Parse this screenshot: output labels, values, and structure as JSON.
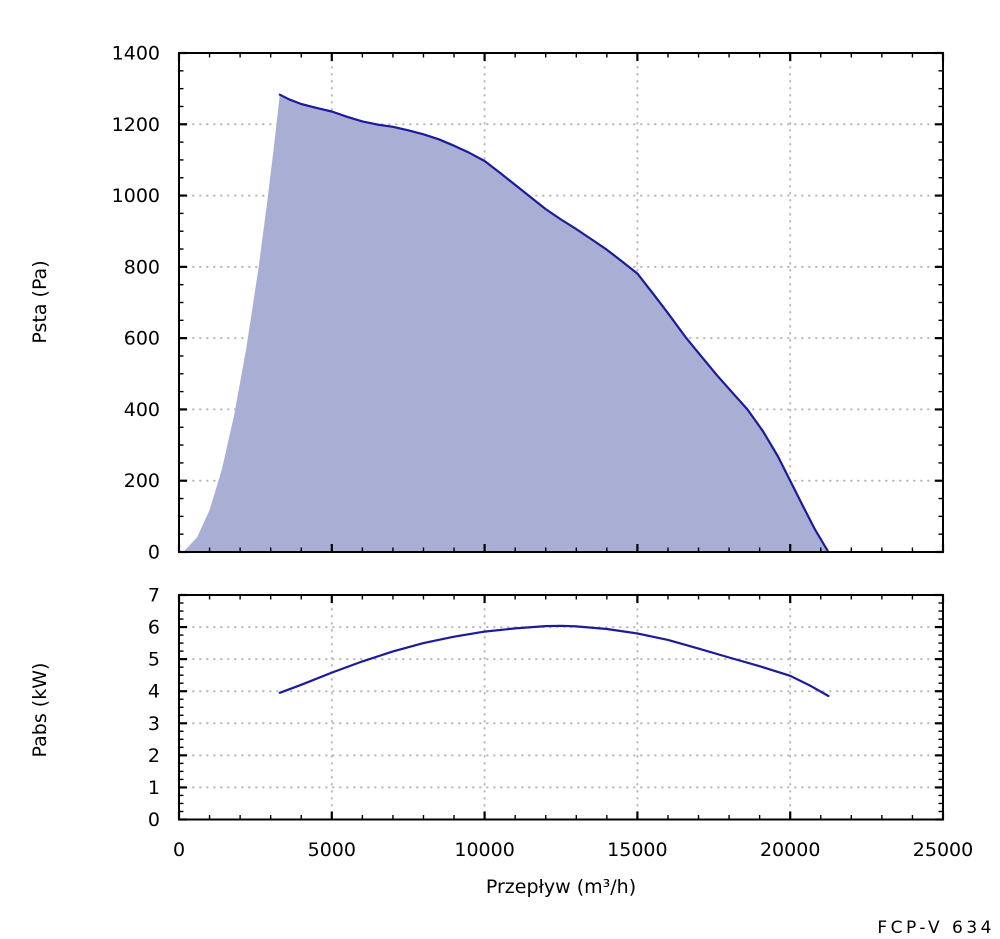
{
  "footer": {
    "model": "FCP-V 634"
  },
  "colors": {
    "curve_line": "#1b1b9c",
    "area_fill": "#a9afd4",
    "grid": "#b9b9b9",
    "axis": "#000000",
    "background": "#ffffff"
  },
  "x_axis": {
    "label": "Przepływ (m³/h)",
    "min": 0,
    "max": 25000,
    "major_ticks": [
      0,
      5000,
      10000,
      15000,
      20000,
      25000
    ],
    "minor_step": 1000
  },
  "chart_data": [
    {
      "type": "area",
      "name": "psta",
      "title": "",
      "ylabel": "Psta (Pa)",
      "xlabel": "Przepływ (m³/h)",
      "xlim": [
        0,
        25000
      ],
      "ylim": [
        0,
        1400
      ],
      "y_major_ticks": [
        0,
        200,
        400,
        600,
        800,
        1000,
        1200,
        1400
      ],
      "y_minor_step": 50,
      "grid": true,
      "legend": "none",
      "series": [
        {
          "name": "operating-area-left-boundary",
          "role": "fill-boundary",
          "stroked": false,
          "points": [
            [
              200,
              5
            ],
            [
              600,
              42
            ],
            [
              1000,
              118
            ],
            [
              1400,
              231
            ],
            [
              1800,
              382
            ],
            [
              2200,
              570
            ],
            [
              2600,
              796
            ],
            [
              2900,
              991
            ],
            [
              3100,
              1132
            ],
            [
              3300,
              1283
            ]
          ]
        },
        {
          "name": "max-pressure-curve",
          "role": "line",
          "stroked": true,
          "points": [
            [
              3300,
              1283
            ],
            [
              3600,
              1270
            ],
            [
              4000,
              1257
            ],
            [
              4500,
              1246
            ],
            [
              5000,
              1236
            ],
            [
              5500,
              1221
            ],
            [
              6000,
              1208
            ],
            [
              6500,
              1199
            ],
            [
              7000,
              1193
            ],
            [
              7500,
              1183
            ],
            [
              8000,
              1172
            ],
            [
              8500,
              1158
            ],
            [
              9000,
              1140
            ],
            [
              9500,
              1120
            ],
            [
              10000,
              1097
            ],
            [
              10500,
              1064
            ],
            [
              11000,
              1030
            ],
            [
              11500,
              996
            ],
            [
              12000,
              962
            ],
            [
              12500,
              933
            ],
            [
              13000,
              906
            ],
            [
              13500,
              877
            ],
            [
              14000,
              848
            ],
            [
              14500,
              815
            ],
            [
              15000,
              781
            ],
            [
              15500,
              726
            ],
            [
              16000,
              670
            ],
            [
              16600,
              600
            ],
            [
              17100,
              548
            ],
            [
              17600,
              496
            ],
            [
              18100,
              448
            ],
            [
              18600,
              400
            ],
            [
              19100,
              340
            ],
            [
              19600,
              268
            ],
            [
              20000,
              200
            ],
            [
              20400,
              132
            ],
            [
              20800,
              65
            ],
            [
              21250,
              0
            ]
          ]
        }
      ]
    },
    {
      "type": "line",
      "name": "pabs",
      "title": "",
      "ylabel": "Pabs (kW)",
      "xlabel": "Przepływ (m³/h)",
      "xlim": [
        0,
        25000
      ],
      "ylim": [
        0,
        7
      ],
      "y_major_ticks": [
        0,
        1,
        2,
        3,
        4,
        5,
        6,
        7
      ],
      "y_minor_step": 0.25,
      "grid": true,
      "legend": "none",
      "series": [
        {
          "name": "absorbed-power-curve",
          "role": "line",
          "stroked": true,
          "points": [
            [
              3300,
              3.95
            ],
            [
              4000,
              4.2
            ],
            [
              5000,
              4.58
            ],
            [
              6000,
              4.93
            ],
            [
              7000,
              5.24
            ],
            [
              8000,
              5.5
            ],
            [
              9000,
              5.7
            ],
            [
              10000,
              5.86
            ],
            [
              11000,
              5.96
            ],
            [
              12000,
              6.03
            ],
            [
              12500,
              6.04
            ],
            [
              13000,
              6.02
            ],
            [
              14000,
              5.94
            ],
            [
              15000,
              5.8
            ],
            [
              16000,
              5.6
            ],
            [
              17000,
              5.33
            ],
            [
              18000,
              5.05
            ],
            [
              19000,
              4.78
            ],
            [
              20000,
              4.48
            ],
            [
              20700,
              4.15
            ],
            [
              21250,
              3.85
            ]
          ]
        }
      ]
    }
  ]
}
